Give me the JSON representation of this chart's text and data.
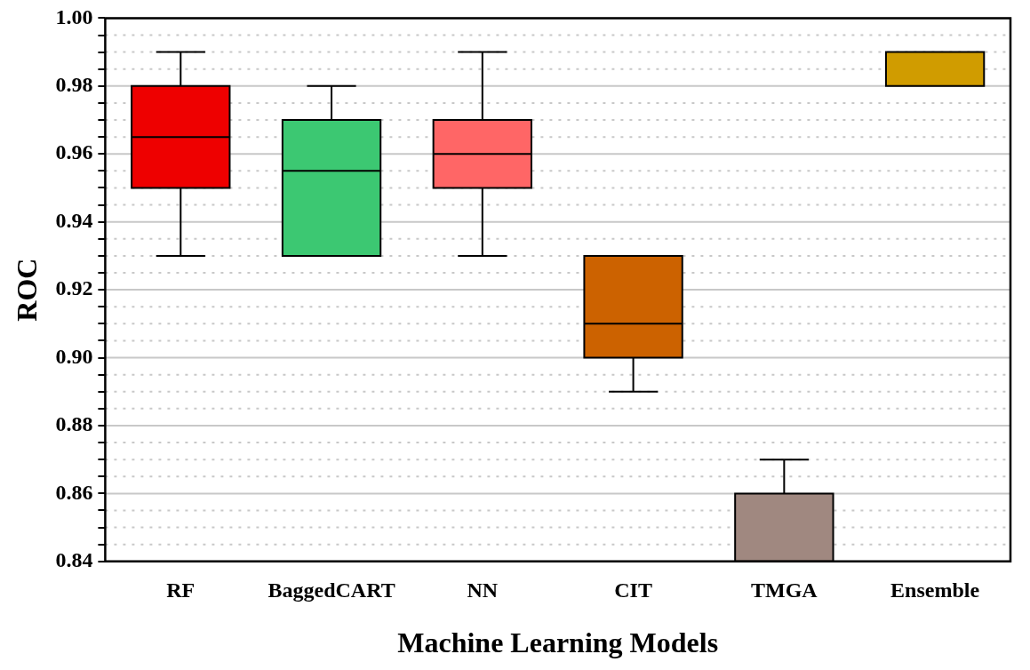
{
  "chart_data": {
    "type": "box",
    "xlabel": "Machine Learning Models",
    "ylabel": "ROC",
    "categories": [
      "RF",
      "BaggedCART",
      "NN",
      "CIT",
      "TMGA",
      "Ensemble"
    ],
    "colors": [
      "#ee0000",
      "#3cc872",
      "#ff6666",
      "#cc6200",
      "#a08880",
      "#d09c00"
    ],
    "boxes": [
      {
        "low": 0.93,
        "q1": 0.95,
        "median": 0.965,
        "q3": 0.98,
        "high": 0.99
      },
      {
        "low": 0.93,
        "q1": 0.93,
        "median": 0.955,
        "q3": 0.97,
        "high": 0.98
      },
      {
        "low": 0.93,
        "q1": 0.95,
        "median": 0.96,
        "q3": 0.97,
        "high": 0.99
      },
      {
        "low": 0.89,
        "q1": 0.9,
        "median": 0.91,
        "q3": 0.93,
        "high": 0.93
      },
      {
        "low": 0.84,
        "q1": 0.84,
        "median": 0.84,
        "q3": 0.86,
        "high": 0.87
      },
      {
        "low": 0.98,
        "q1": 0.98,
        "median": 0.98,
        "q3": 0.99,
        "high": 0.99
      }
    ],
    "ylim": [
      0.84,
      1.0
    ],
    "yticks": [
      {
        "value": 0.84,
        "label": "0.84"
      },
      {
        "value": 0.845,
        "label": null
      },
      {
        "value": 0.85,
        "label": null
      },
      {
        "value": 0.855,
        "label": null
      },
      {
        "value": 0.86,
        "label": "0.86"
      },
      {
        "value": 0.865,
        "label": null
      },
      {
        "value": 0.87,
        "label": null
      },
      {
        "value": 0.875,
        "label": null
      },
      {
        "value": 0.88,
        "label": "0.88"
      },
      {
        "value": 0.885,
        "label": null
      },
      {
        "value": 0.89,
        "label": null
      },
      {
        "value": 0.895,
        "label": null
      },
      {
        "value": 0.9,
        "label": "0.90"
      },
      {
        "value": 0.905,
        "label": null
      },
      {
        "value": 0.91,
        "label": null
      },
      {
        "value": 0.915,
        "label": null
      },
      {
        "value": 0.92,
        "label": "0.92"
      },
      {
        "value": 0.925,
        "label": null
      },
      {
        "value": 0.93,
        "label": null
      },
      {
        "value": 0.935,
        "label": null
      },
      {
        "value": 0.94,
        "label": "0.94"
      },
      {
        "value": 0.945,
        "label": null
      },
      {
        "value": 0.95,
        "label": null
      },
      {
        "value": 0.955,
        "label": null
      },
      {
        "value": 0.96,
        "label": "0.96"
      },
      {
        "value": 0.965,
        "label": null
      },
      {
        "value": 0.97,
        "label": null
      },
      {
        "value": 0.975,
        "label": null
      },
      {
        "value": 0.98,
        "label": "0.98"
      },
      {
        "value": 0.985,
        "label": null
      },
      {
        "value": 0.99,
        "label": null
      },
      {
        "value": 0.995,
        "label": null
      },
      {
        "value": 1.0,
        "label": "1.00"
      }
    ],
    "grid": "y",
    "legend": false
  }
}
